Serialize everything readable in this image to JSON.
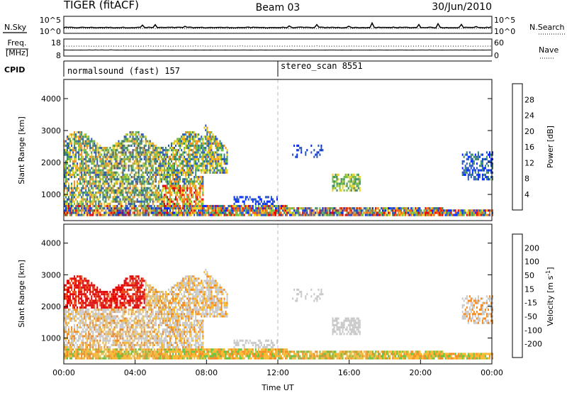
{
  "header": {
    "radar": "TIGER (fitACF)",
    "beam": "Beam 03",
    "date": "30/Jun/2010"
  },
  "noise_panel": {
    "left_label": "N.Sky",
    "right_label": "N.Search",
    "left_ticks": [
      "10^5",
      "10^0"
    ],
    "right_ticks": [
      "10^5",
      "10^0"
    ]
  },
  "freq_panel": {
    "label_line1": "Freq.",
    "label_line2": "[MHz]",
    "right_label": "Nave",
    "left_ticks": [
      "18",
      "8"
    ],
    "right_ticks": [
      "60",
      "0"
    ]
  },
  "cpid_panel": {
    "label": "CPID",
    "entries": [
      {
        "text": "normalsound (fast) 157",
        "start_hour": 0
      },
      {
        "text": "stereo_scan 8551",
        "start_hour": 12
      }
    ]
  },
  "chart_data": [
    {
      "type": "heatmap",
      "quantity": "power",
      "ylabel": "Slant Range [km]",
      "xlim_hours": [
        0,
        24
      ],
      "ylim": [
        180,
        4600
      ],
      "yticks": [
        "1000",
        "2000",
        "3000",
        "4000"
      ],
      "colorbar": {
        "label": "Power [dB]",
        "ticks": [
          "4",
          "8",
          "12",
          "16",
          "20",
          "24",
          "28"
        ],
        "range": [
          0,
          30
        ],
        "colors": [
          "#0028ff",
          "#2a56b8",
          "#3c8a6a",
          "#6cbf40",
          "#e8d020",
          "#f09020",
          "#f05a10",
          "#e80000"
        ]
      },
      "regions": [
        {
          "t0": 0.0,
          "t1": 7.8,
          "r0": 650,
          "r1": 2700,
          "level": "mixed-strong"
        },
        {
          "t0": 5.5,
          "t1": 7.6,
          "r0": 700,
          "r1": 1300,
          "level": "strong"
        },
        {
          "t0": 0.0,
          "t1": 24.0,
          "r0": 250,
          "r1": 700,
          "level": "ground-scatter"
        },
        {
          "t0": 15.0,
          "t1": 16.6,
          "r0": 1050,
          "r1": 1600,
          "level": "moderate"
        },
        {
          "t0": 22.5,
          "t1": 24.0,
          "r0": 1500,
          "r1": 2300,
          "level": "moderate"
        }
      ]
    },
    {
      "type": "heatmap",
      "quantity": "velocity",
      "ylabel": "Slant Range [km]",
      "xlabel": "Time UT",
      "xlim_hours": [
        0,
        24
      ],
      "ylim": [
        180,
        4600
      ],
      "xticks": [
        "00:00",
        "04:00",
        "08:00",
        "12:00",
        "16:00",
        "20:00",
        "00:00"
      ],
      "yticks": [
        "1000",
        "2000",
        "3000",
        "4000"
      ],
      "colorbar": {
        "label": "Velocity [m s",
        "label_exponent": "-1",
        "label_close": "]",
        "ticks": [
          "200",
          "100",
          "50",
          "15",
          "-15",
          "-50",
          "-100",
          "-200"
        ],
        "range": [
          -250,
          250
        ],
        "colors": [
          "#e80000",
          "#f04a10",
          "#f08a20",
          "#f5b830",
          "#c8c8c8",
          "#6cc040",
          "#3a8fb0",
          "#2a60c0",
          "#1830c0"
        ]
      }
    }
  ],
  "noise_series": {
    "n_sky_level": 0.32,
    "n_search_level": 0.28,
    "freq_level": 0.58,
    "nave_level": 0.35
  }
}
